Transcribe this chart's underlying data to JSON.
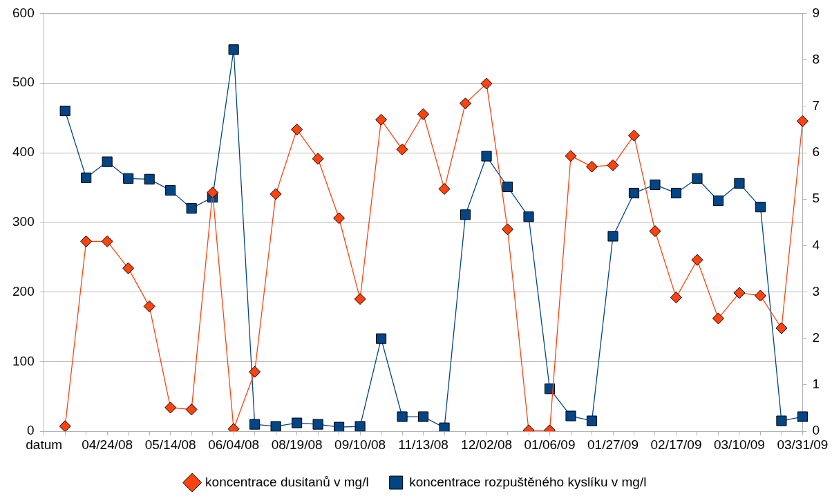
{
  "chart_data": {
    "type": "line",
    "categories": [
      "datum",
      null,
      null,
      "04/24/08",
      null,
      null,
      "05/14/08",
      null,
      null,
      "06/04/08",
      null,
      null,
      "08/19/08",
      null,
      null,
      "09/10/08",
      null,
      null,
      "11/13/08",
      null,
      null,
      "12/02/08",
      null,
      null,
      "01/06/09",
      null,
      null,
      "01/27/09",
      null,
      null,
      "02/17/09",
      null,
      null,
      "03/10/09",
      null,
      null,
      "03/31/09"
    ],
    "series": [
      {
        "name": "koncentrace rozpuštěného kyslíku v mg/l",
        "color": "#004586",
        "marker": "square",
        "values": [
          null,
          460,
          364,
          387,
          363,
          362,
          346,
          320,
          336,
          548,
          10,
          7,
          12,
          10,
          6,
          7,
          133,
          21,
          21,
          5,
          311,
          395,
          351,
          308,
          61,
          22,
          15,
          280,
          342,
          354,
          342,
          363,
          331,
          356,
          322,
          15,
          21
        ]
      },
      {
        "name": "koncentrace dusitanů v mg/l",
        "color": "#ff420e",
        "marker": "diamond",
        "axis": "y2",
        "values": [
          null,
          0.11,
          4.09,
          4.09,
          3.51,
          2.69,
          0.51,
          0.47,
          5.14,
          0.05,
          1.28,
          5.11,
          6.5,
          5.87,
          4.59,
          2.85,
          6.71,
          6.07,
          6.83,
          5.22,
          7.06,
          7.49,
          4.35,
          0.02,
          0.02,
          5.93,
          5.7,
          5.73,
          6.37,
          4.31,
          2.88,
          3.69,
          2.43,
          2.98,
          2.92,
          2.22,
          6.68
        ]
      }
    ],
    "ylim": [
      0,
      600
    ],
    "yticks": [
      0,
      100,
      200,
      300,
      400,
      500,
      600
    ],
    "y2lim": [
      0,
      9
    ],
    "y2ticks": [
      0,
      1,
      2,
      3,
      4,
      5,
      6,
      7,
      8,
      9
    ],
    "grid": "y",
    "legend": "bottom",
    "line_style": "solid"
  }
}
